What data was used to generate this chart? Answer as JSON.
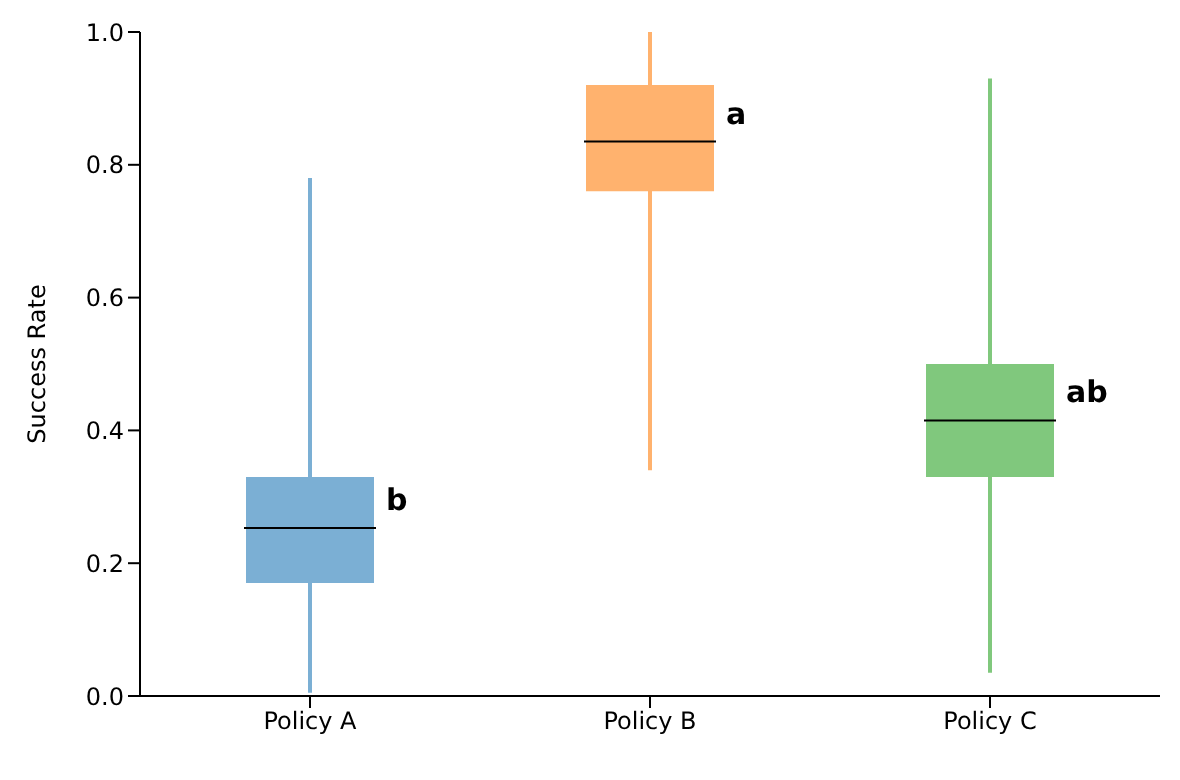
{
  "chart_data": {
    "type": "box",
    "ylabel": "Success Rate",
    "categories": [
      "Policy A",
      "Policy B",
      "Policy C"
    ],
    "colors": [
      "#7bafd4",
      "#ffb26e",
      "#80c87d"
    ],
    "boxes": [
      {
        "low": 0.005,
        "q1": 0.17,
        "median": 0.253,
        "q3": 0.33,
        "high": 0.78
      },
      {
        "low": 0.34,
        "q1": 0.76,
        "median": 0.835,
        "q3": 0.92,
        "high": 1.0
      },
      {
        "low": 0.035,
        "q1": 0.33,
        "median": 0.415,
        "q3": 0.5,
        "high": 0.93
      }
    ],
    "ylim": [
      0,
      1
    ],
    "yticks": [
      {
        "value": 0,
        "label": "0.0"
      },
      {
        "value": 0.2,
        "label": "0.2"
      },
      {
        "value": 0.4,
        "label": "0.4"
      },
      {
        "value": 0.6,
        "label": "0.6"
      },
      {
        "value": 0.8,
        "label": "0.8"
      },
      {
        "value": 1,
        "label": "1.0"
      }
    ],
    "annotations": [
      {
        "text": "b",
        "x": "Policy A",
        "y": 0.253
      },
      {
        "text": "a",
        "x": "Policy B",
        "y": 0.835
      },
      {
        "text": "ab",
        "x": "Policy C",
        "y": 0.415
      }
    ],
    "grid": false,
    "legend": false
  }
}
